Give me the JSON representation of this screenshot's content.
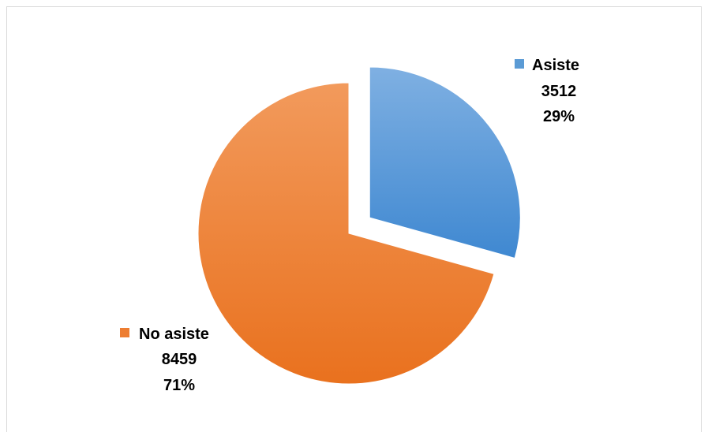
{
  "chart_data": {
    "type": "pie",
    "slices": [
      {
        "name": "Asiste",
        "value": 3512,
        "percent_label": "29%",
        "color": "#5b9bd5",
        "exploded": true
      },
      {
        "name": "No asiste",
        "value": 8459,
        "percent_label": "71%",
        "color": "#ed7d31",
        "exploded": false
      }
    ],
    "legend": "none",
    "data_labels": "outside"
  }
}
